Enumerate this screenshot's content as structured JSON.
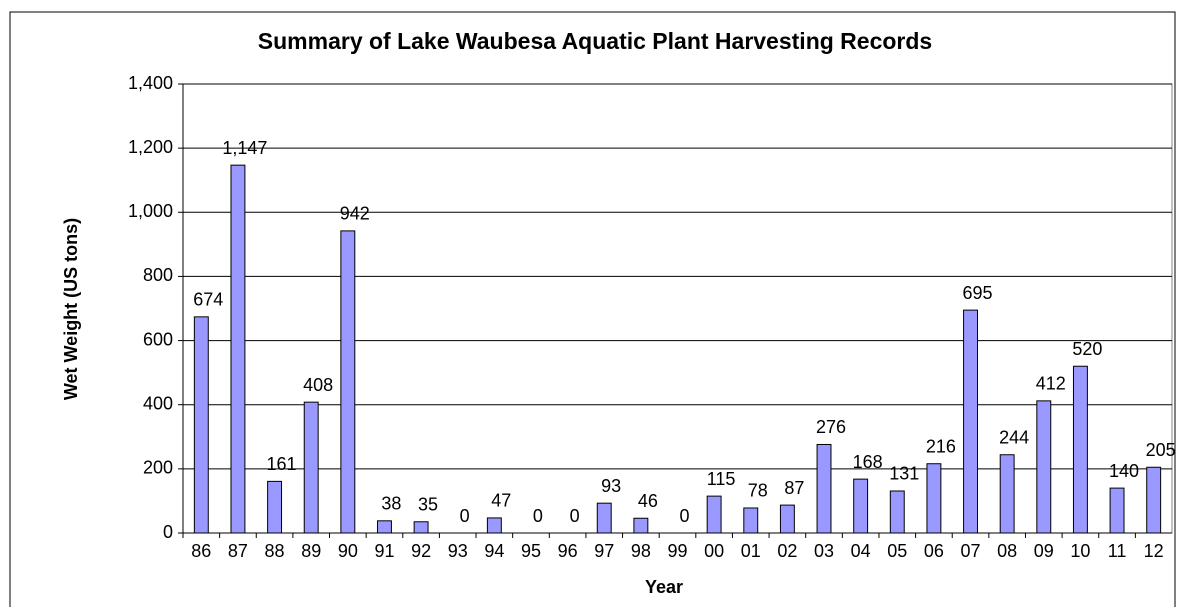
{
  "chart_data": {
    "type": "bar",
    "title": "Summary of Lake Waubesa Aquatic Plant Harvesting Records",
    "x_label": "Year",
    "y_label": "Wet Weight (US tons)",
    "categories": [
      "86",
      "87",
      "88",
      "89",
      "90",
      "91",
      "92",
      "93",
      "94",
      "95",
      "96",
      "97",
      "98",
      "99",
      "00",
      "01",
      "02",
      "03",
      "04",
      "05",
      "06",
      "07",
      "08",
      "09",
      "10",
      "11",
      "12"
    ],
    "values": [
      674,
      1147,
      161,
      408,
      942,
      38,
      35,
      0,
      47,
      0,
      0,
      93,
      46,
      0,
      115,
      78,
      87,
      276,
      168,
      131,
      216,
      695,
      244,
      412,
      520,
      140,
      205
    ],
    "value_labels": [
      "674",
      "1,147",
      "161",
      "408",
      "942",
      "38",
      "35",
      "0",
      "47",
      "0",
      "0",
      "93",
      "46",
      "0",
      "115",
      "78",
      "87",
      "276",
      "168",
      "131",
      "216",
      "695",
      "244",
      "412",
      "520",
      "140",
      "205"
    ],
    "color": "#9999ff",
    "ylim": [
      0,
      1400
    ],
    "yticks": [
      0,
      200,
      400,
      600,
      800,
      {
        "value": 1000,
        "label": "1,000"
      },
      {
        "value": 1200,
        "label": "1,200"
      },
      {
        "value": 1400,
        "label": "1,400"
      }
    ],
    "grid": true
  }
}
